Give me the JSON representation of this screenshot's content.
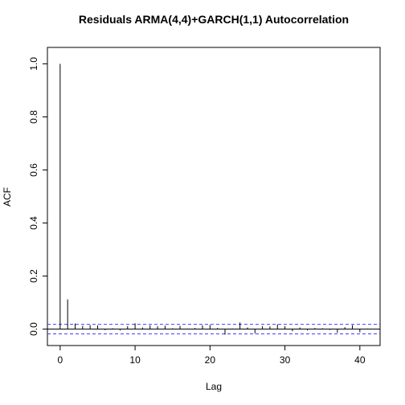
{
  "chart_data": {
    "type": "bar",
    "title": "Residuals ARMA(4,4)+GARCH(1,1) Autocorrelation",
    "xlabel": "Lag",
    "ylabel": "ACF",
    "xlim": [
      -1.7,
      42.7
    ],
    "ylim": [
      -0.062,
      1.062
    ],
    "x_ticks": [
      0,
      10,
      20,
      30,
      40
    ],
    "y_ticks": [
      0.0,
      0.2,
      0.4,
      0.6,
      0.8,
      1.0
    ],
    "x_tick_labels": [
      "0",
      "10",
      "20",
      "30",
      "40"
    ],
    "y_tick_labels": [
      "0.0",
      "0.2",
      "0.4",
      "0.6",
      "0.8",
      "1.0"
    ],
    "confidence_bound": 0.018,
    "colors": {
      "spike": "#000000",
      "bound": "#4040ff",
      "zero_line": "#000000",
      "frame": "#000000"
    },
    "lags": [
      0,
      1,
      2,
      3,
      4,
      5,
      6,
      7,
      8,
      9,
      10,
      11,
      12,
      13,
      14,
      15,
      16,
      17,
      18,
      19,
      20,
      21,
      22,
      23,
      24,
      25,
      26,
      27,
      28,
      29,
      30,
      31,
      32,
      33,
      34,
      35,
      36,
      37,
      38,
      39,
      40,
      41
    ],
    "values": [
      1.0,
      0.112,
      0.021,
      0.012,
      0.015,
      0.014,
      -0.004,
      0.003,
      -0.005,
      0.011,
      0.022,
      0.006,
      0.014,
      0.011,
      0.013,
      0.003,
      0.012,
      0.002,
      0.004,
      0.014,
      0.016,
      0.004,
      -0.021,
      0.002,
      0.025,
      0.006,
      -0.016,
      0.011,
      0.01,
      0.018,
      0.011,
      -0.008,
      0.006,
      -0.005,
      0.004,
      0.003,
      -0.003,
      -0.014,
      0.007,
      0.015,
      -0.012,
      0.002
    ]
  }
}
